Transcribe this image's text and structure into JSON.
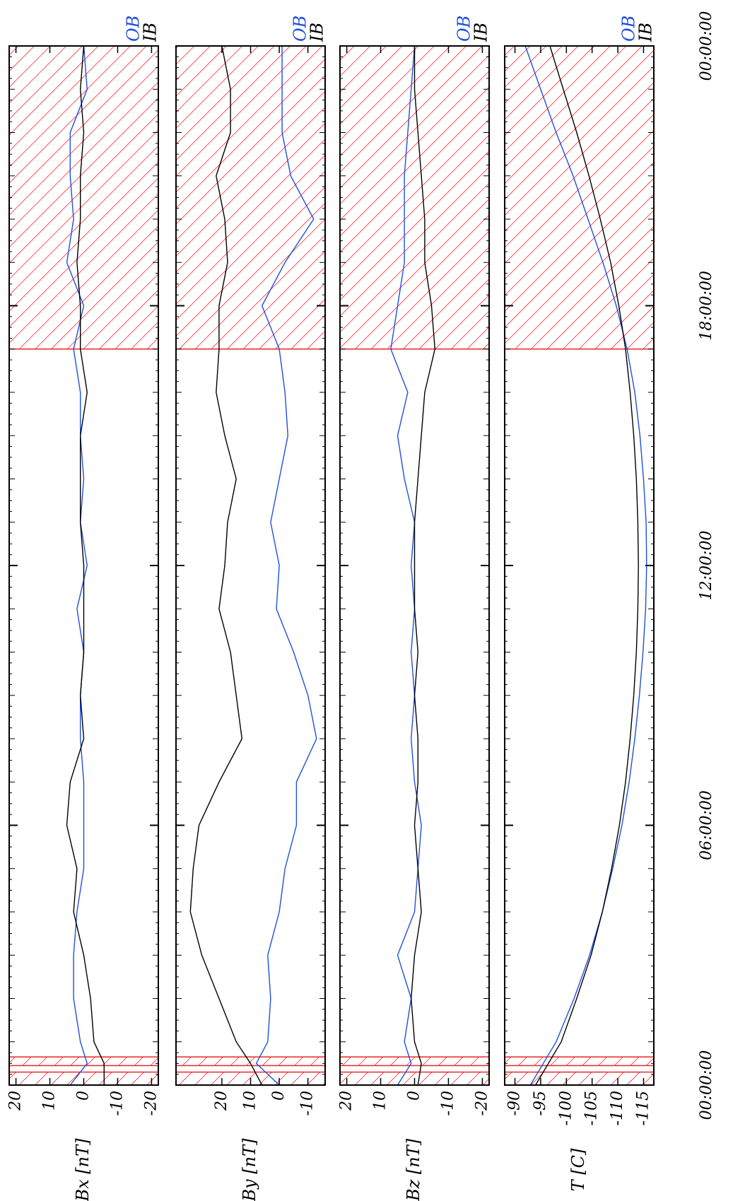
{
  "figure": {
    "time_ticks": [
      "00:00:00",
      "06:00:00",
      "12:00:00",
      "18:00:00",
      "00:00:00"
    ],
    "legend": {
      "ob": "OB",
      "ib": "IB"
    },
    "colors": {
      "ob": "#1f4fe0",
      "ib": "#000000",
      "hatch": "#e8282a",
      "axis": "#000000"
    }
  },
  "chart_data": [
    {
      "type": "line",
      "ylabel": "Bx [nT]",
      "ylim": [
        -22,
        22
      ],
      "yticks": [
        "20",
        "10",
        "0",
        "-10",
        "-20"
      ],
      "ytick_values": [
        20,
        10,
        0,
        -10,
        -20
      ],
      "x_unit": "hours since start (0–24)",
      "shaded_intervals": [
        [
          0,
          0.3
        ],
        [
          0.45,
          0.65
        ],
        [
          17,
          24
        ]
      ],
      "series": [
        {
          "name": "OB",
          "x": [
            0,
            0.5,
            1,
            2,
            3,
            4,
            5,
            6,
            7,
            8,
            9,
            10,
            11,
            12,
            13,
            14,
            15,
            16,
            17,
            18,
            19,
            20,
            21,
            22,
            23,
            24
          ],
          "values": [
            4,
            -1,
            1,
            3,
            3,
            2,
            0,
            0,
            0,
            1,
            1,
            0,
            2,
            -1,
            1,
            0,
            1,
            1,
            3,
            0,
            5,
            3,
            4,
            4,
            -1,
            0
          ]
        },
        {
          "name": "IB",
          "x": [
            0,
            0.5,
            1,
            2,
            3,
            4,
            5,
            6,
            7,
            8,
            9,
            10,
            11,
            12,
            13,
            14,
            15,
            16,
            17,
            18,
            19,
            20,
            21,
            22,
            23,
            24
          ],
          "values": [
            -6,
            -6,
            -3,
            -2,
            0,
            3,
            2,
            5,
            4,
            0,
            1,
            0,
            0,
            0,
            1,
            1,
            1,
            -1,
            1,
            1,
            2,
            1,
            1,
            0,
            1,
            0
          ]
        }
      ]
    },
    {
      "type": "line",
      "ylabel": "By [nT]",
      "ylim": [
        -16,
        36
      ],
      "yticks": [
        "20",
        "10",
        "0",
        "-10"
      ],
      "ytick_values": [
        20,
        10,
        0,
        -10
      ],
      "x_unit": "hours since start (0–24)",
      "shaded_intervals": [
        [
          0,
          0.3
        ],
        [
          0.45,
          0.65
        ],
        [
          17,
          24
        ]
      ],
      "series": [
        {
          "name": "OB",
          "x": [
            0,
            0.5,
            1,
            2,
            3,
            4,
            5,
            6,
            7,
            8,
            9,
            10,
            11,
            12,
            13,
            14,
            15,
            16,
            17,
            18,
            19,
            20,
            21,
            22,
            23,
            24
          ],
          "values": [
            0,
            8,
            4,
            3,
            4,
            0,
            -2,
            -6,
            -6,
            -13,
            -10,
            -5,
            1,
            0,
            3,
            0,
            -3,
            -2,
            0,
            6,
            -2,
            -12,
            -4,
            -1,
            -1,
            -1
          ]
        },
        {
          "name": "IB",
          "x": [
            0,
            0.5,
            1,
            2,
            3,
            4,
            5,
            6,
            7,
            8,
            9,
            10,
            11,
            12,
            13,
            14,
            15,
            16,
            17,
            18,
            19,
            20,
            21,
            22,
            23,
            24
          ],
          "values": [
            6,
            10,
            15,
            21,
            27,
            31,
            30,
            28,
            21,
            13,
            15,
            17,
            21,
            19,
            18,
            15,
            19,
            22,
            21,
            21,
            18,
            19,
            22,
            17,
            17,
            20
          ]
        }
      ]
    },
    {
      "type": "line",
      "ylabel": "Bz [nT]",
      "ylim": [
        -22,
        22
      ],
      "yticks": [
        "20",
        "10",
        "0",
        "-10",
        "-20"
      ],
      "ytick_values": [
        20,
        10,
        0,
        -10,
        -20
      ],
      "x_unit": "hours since start (0–24)",
      "shaded_intervals": [
        [
          0,
          0.3
        ],
        [
          0.45,
          0.65
        ],
        [
          17,
          24
        ]
      ],
      "series": [
        {
          "name": "OB",
          "x": [
            0,
            0.5,
            1,
            2,
            3,
            4,
            5,
            6,
            7,
            8,
            9,
            10,
            11,
            12,
            13,
            14,
            15,
            16,
            17,
            18,
            19,
            20,
            21,
            22,
            23,
            24
          ],
          "values": [
            5,
            1,
            3,
            1,
            5,
            0,
            -1,
            -2,
            0,
            1,
            0,
            1,
            0,
            1,
            0,
            3,
            5,
            2,
            7,
            5,
            3,
            3,
            3,
            2,
            1,
            0
          ]
        },
        {
          "name": "IB",
          "x": [
            0,
            0.5,
            1,
            2,
            3,
            4,
            5,
            6,
            7,
            8,
            9,
            10,
            11,
            12,
            13,
            14,
            15,
            16,
            17,
            18,
            19,
            20,
            21,
            22,
            23,
            24
          ],
          "values": [
            -1,
            -2,
            0,
            1,
            0,
            -2,
            -1,
            0,
            -1,
            -1,
            0,
            -1,
            0,
            0,
            0,
            -1,
            -2,
            -3,
            -6,
            -5,
            -3,
            -3,
            -2,
            -1,
            0,
            0
          ]
        }
      ]
    },
    {
      "type": "line",
      "ylabel": "T [C]",
      "ylim": [
        -117,
        -88
      ],
      "yticks": [
        "-90",
        "-95",
        "-100",
        "-105",
        "-110",
        "-115"
      ],
      "ytick_values": [
        -90,
        -95,
        -100,
        -105,
        -110,
        -115
      ],
      "x_unit": "hours since start (0–24)",
      "shaded_intervals": [
        [
          0,
          0.3
        ],
        [
          0.45,
          0.65
        ],
        [
          17,
          24
        ]
      ],
      "series": [
        {
          "name": "OB",
          "x": [
            0,
            1,
            2,
            3,
            4,
            5,
            6,
            7,
            8,
            9,
            10,
            11,
            12,
            13,
            14,
            15,
            16,
            17,
            18,
            19,
            20,
            21,
            22,
            23,
            24
          ],
          "values": [
            -93,
            -98,
            -101.5,
            -104.5,
            -107,
            -109,
            -110.8,
            -112.2,
            -113.3,
            -114.2,
            -114.9,
            -115.4,
            -115.6,
            -115.5,
            -115,
            -114.3,
            -113.3,
            -111.8,
            -109.7,
            -107.1,
            -104.2,
            -101.3,
            -98,
            -95,
            -92
          ]
        },
        {
          "name": "IB",
          "x": [
            0,
            1,
            2,
            3,
            4,
            5,
            6,
            7,
            8,
            9,
            10,
            11,
            12,
            13,
            14,
            15,
            16,
            17,
            18,
            19,
            20,
            21,
            22,
            23,
            24
          ],
          "values": [
            -94,
            -99,
            -102,
            -104.8,
            -107,
            -108.8,
            -110.3,
            -111.5,
            -112.4,
            -113.1,
            -113.6,
            -113.9,
            -114,
            -113.9,
            -113.6,
            -113.1,
            -112.4,
            -111.5,
            -110.2,
            -108.6,
            -106.6,
            -104.4,
            -102,
            -99.4,
            -96.8
          ]
        }
      ]
    }
  ]
}
